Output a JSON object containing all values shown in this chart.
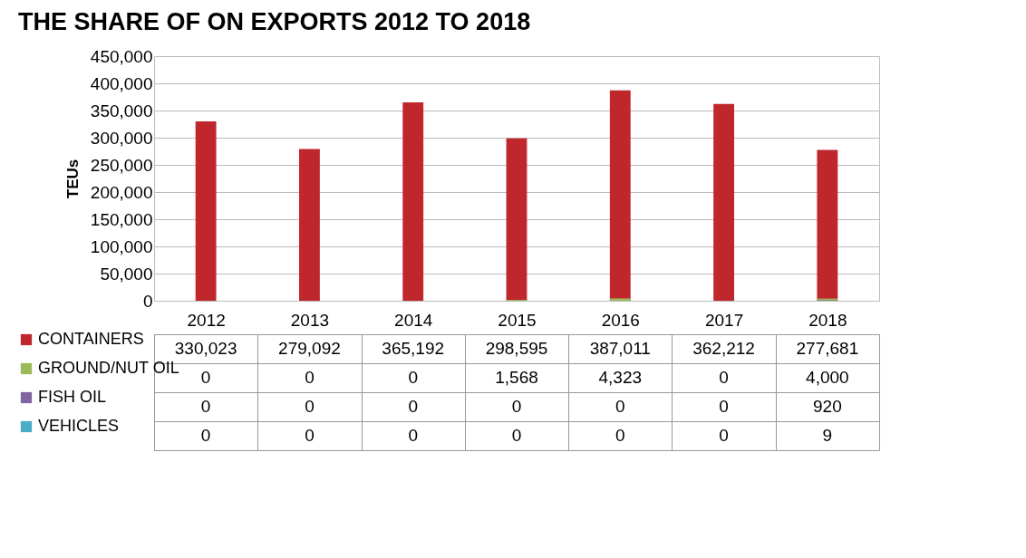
{
  "chart_data": {
    "type": "bar",
    "title": "THE SHARE OF ON EXPORTS 2012 TO 2018",
    "ylabel": "TEUs",
    "categories": [
      "2012",
      "2013",
      "2014",
      "2015",
      "2016",
      "2017",
      "2018"
    ],
    "series": [
      {
        "name": "CONTAINERS",
        "color": "#c0272d",
        "values": [
          330023,
          279092,
          365192,
          298595,
          387011,
          362212,
          277681
        ],
        "value_labels": [
          "330,023",
          "279,092",
          "365,192",
          "298,595",
          "387,011",
          "362,212",
          "277,681"
        ]
      },
      {
        "name": "GROUND/NUT OIL",
        "color": "#9bbb59",
        "values": [
          0,
          0,
          0,
          1568,
          4323,
          0,
          4000
        ],
        "value_labels": [
          "0",
          "0",
          "0",
          "1,568",
          "4,323",
          "0",
          "4,000"
        ]
      },
      {
        "name": "FISH OIL",
        "color": "#8064a2",
        "values": [
          0,
          0,
          0,
          0,
          0,
          0,
          920
        ],
        "value_labels": [
          "0",
          "0",
          "0",
          "0",
          "0",
          "0",
          "920"
        ]
      },
      {
        "name": "VEHICLES",
        "color": "#4bacc6",
        "values": [
          0,
          0,
          0,
          0,
          0,
          0,
          9
        ],
        "value_labels": [
          "0",
          "0",
          "0",
          "0",
          "0",
          "0",
          "9"
        ]
      }
    ],
    "ylim": [
      0,
      450000
    ],
    "yticks": [
      0,
      {
        "value": 50000,
        "label": "50,000"
      },
      {
        "value": 100000,
        "label": "100,000"
      },
      {
        "value": 150000,
        "label": "150,000"
      },
      {
        "value": 200000,
        "label": "200,000"
      },
      {
        "value": 250000,
        "label": "250,000"
      },
      {
        "value": 300000,
        "label": "300,000"
      },
      {
        "value": 350000,
        "label": "350,000"
      },
      {
        "value": 400000,
        "label": "400,000"
      },
      {
        "value": 450000,
        "label": "450,000"
      }
    ],
    "grid": "y",
    "legend": "left"
  }
}
